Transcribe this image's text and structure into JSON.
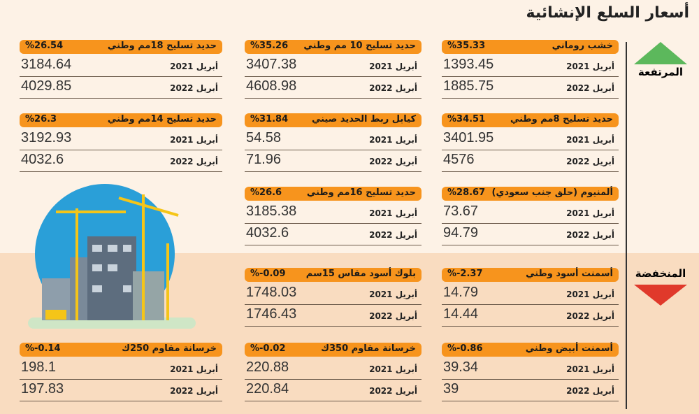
{
  "title": "أسعار السلع الإنشائية",
  "sections": [
    {
      "label": "المرتفعة",
      "columns": [
        [
          {
            "name": "خشب روماني",
            "change": "%35.33",
            "rows": [
              {
                "label": "أبريل 2021",
                "value": 1393.45
              },
              {
                "label": "أبريل 2022",
                "value": 1885.75
              }
            ]
          },
          {
            "name": "حديد تسليح 8مم وطني",
            "change": "%34.51",
            "rows": [
              {
                "label": "أبريل 2021",
                "value": 3401.95
              },
              {
                "label": "أبريل 2022",
                "value": 4576
              }
            ]
          },
          {
            "name": "ألمنيوم (حلق جنب سعودي)",
            "change": "%28.67",
            "rows": [
              {
                "label": "أبريل 2021",
                "value": 73.67
              },
              {
                "label": "أبريل 2022",
                "value": 94.79
              }
            ]
          }
        ],
        [
          {
            "name": "حديد تسليح 10 مم وطني",
            "change": "%35.26",
            "rows": [
              {
                "label": "أبريل 2021",
                "value": 3407.38
              },
              {
                "label": "أبريل 2022",
                "value": 4608.98
              }
            ]
          },
          {
            "name": "كيابل ربط الحديد صيني",
            "change": "%31.84",
            "rows": [
              {
                "label": "أبريل 2021",
                "value": 54.58
              },
              {
                "label": "أبريل 2022",
                "value": 71.96
              }
            ]
          },
          {
            "name": "حديد تسليح 16مم وطني",
            "change": "%26.6",
            "rows": [
              {
                "label": "أبريل 2021",
                "value": 3185.38
              },
              {
                "label": "أبريل 2022",
                "value": 4032.6
              }
            ]
          }
        ],
        [
          {
            "name": "حديد تسليح 18مم وطني",
            "change": "%26.54",
            "rows": [
              {
                "label": "أبريل 2021",
                "value": 3184.64
              },
              {
                "label": "أبريل 2022",
                "value": 4029.85
              }
            ]
          },
          {
            "name": "حديد تسليح 14مم وطني",
            "change": "%26.3",
            "rows": [
              {
                "label": "أبريل 2021",
                "value": 3192.93
              },
              {
                "label": "أبريل 2022",
                "value": 4032.6
              }
            ]
          }
        ]
      ]
    },
    {
      "label": "المنخفضة",
      "columns": [
        [
          {
            "name": "أسمنت أسود وطني",
            "change": "%-2.37",
            "rows": [
              {
                "label": "أبريل 2021",
                "value": 14.79
              },
              {
                "label": "أبريل 2022",
                "value": 14.44
              }
            ]
          },
          {
            "name": "أسمنت أبيض وطني",
            "change": "%-0.86",
            "rows": [
              {
                "label": "أبريل 2021",
                "value": 39.34
              },
              {
                "label": "أبريل 2022",
                "value": 39
              }
            ]
          }
        ],
        [
          {
            "name": "بلوك أسود مقاس 15سم",
            "change": "%-0.09",
            "rows": [
              {
                "label": "أبريل 2021",
                "value": 1748.03
              },
              {
                "label": "أبريل 2022",
                "value": 1746.43
              }
            ]
          },
          {
            "name": "خرسانة مقاوم 350ك",
            "change": "%-0.02",
            "rows": [
              {
                "label": "أبريل 2021",
                "value": 220.88
              },
              {
                "label": "أبريل 2022",
                "value": 220.84
              }
            ]
          }
        ],
        [
          {
            "name": "خرسانة مقاوم 250ك",
            "change": "%-0.14",
            "rows": [
              {
                "label": "أبريل 2021",
                "value": 198.1
              },
              {
                "label": "أبريل 2022",
                "value": 197.83
              }
            ]
          }
        ]
      ]
    }
  ]
}
